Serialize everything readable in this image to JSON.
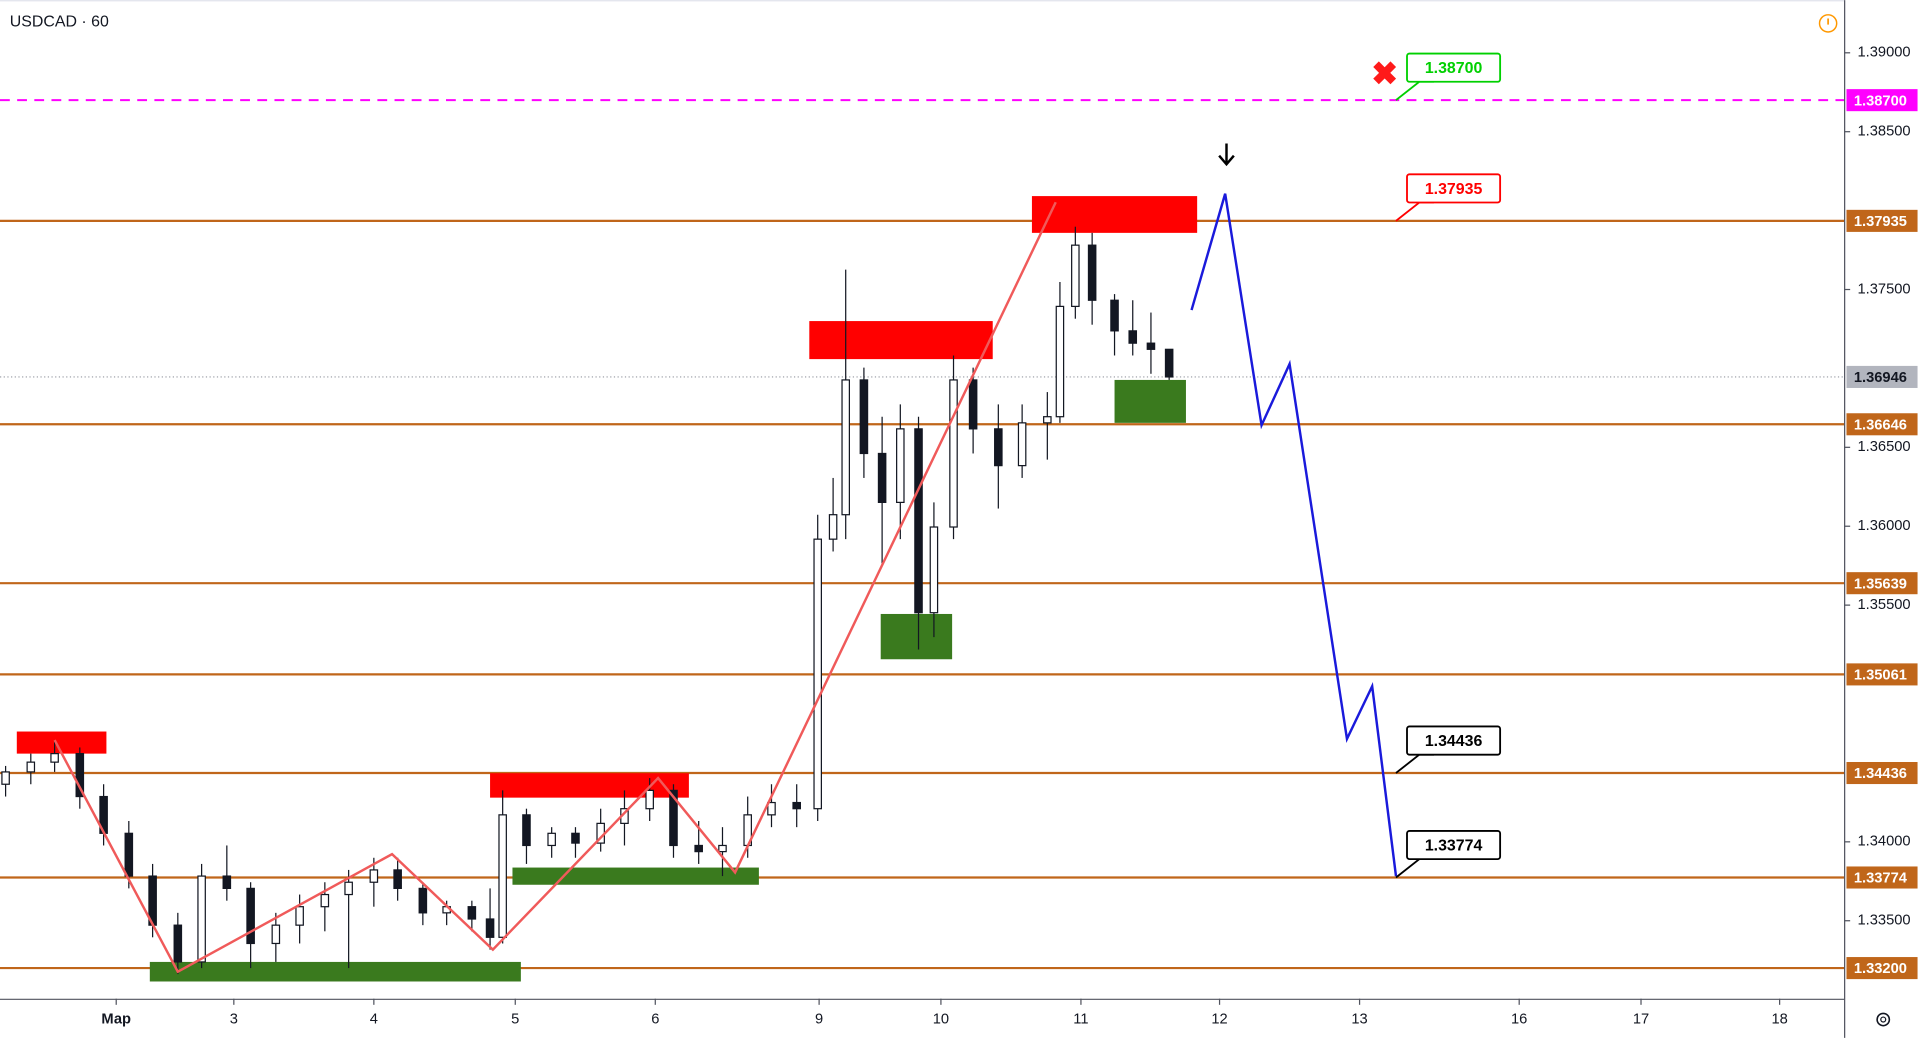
{
  "chart_data": {
    "type": "candlestick",
    "title": "USDCAD · 60",
    "xlim": [
      -0.83,
      12.34
    ],
    "ylim": [
      1.33006,
      1.39334
    ],
    "xticks": [
      {
        "value": 0,
        "label": "Мар"
      },
      {
        "value": 0.84,
        "label": "3"
      },
      {
        "value": 1.84,
        "label": "4"
      },
      {
        "value": 2.85,
        "label": "5"
      },
      {
        "value": 3.85,
        "label": "6"
      },
      {
        "value": 5.02,
        "label": "9"
      },
      {
        "value": 5.89,
        "label": "10"
      },
      {
        "value": 6.89,
        "label": "11"
      },
      {
        "value": 7.88,
        "label": "12"
      },
      {
        "value": 8.88,
        "label": "13"
      },
      {
        "value": 10.02,
        "label": "16"
      },
      {
        "value": 10.89,
        "label": "17"
      },
      {
        "value": 11.88,
        "label": "18"
      }
    ],
    "yticks": [
      {
        "value": 1.39,
        "label": "1.39000"
      },
      {
        "value": 1.385,
        "label": "1.38500"
      },
      {
        "value": 1.375,
        "label": "1.37500"
      },
      {
        "value": 1.365,
        "label": "1.36500"
      },
      {
        "value": 1.36,
        "label": "1.36000"
      },
      {
        "value": 1.355,
        "label": "1.35500"
      },
      {
        "value": 1.34,
        "label": "1.34000"
      },
      {
        "value": 1.335,
        "label": "1.33500"
      }
    ],
    "x": [
      -0.79,
      -0.61,
      -0.44,
      -0.26,
      -0.09,
      0.09,
      0.26,
      0.44,
      0.61,
      0.79,
      0.96,
      1.14,
      1.31,
      1.49,
      1.66,
      1.84,
      2.01,
      2.19,
      2.36,
      2.54,
      2.67,
      2.76,
      2.93,
      3.11,
      3.28,
      3.46,
      3.63,
      3.81,
      3.98,
      4.16,
      4.33,
      4.51,
      4.68,
      4.86,
      5.01,
      5.12,
      5.21,
      5.34,
      5.47,
      5.6,
      5.73,
      5.84,
      5.98,
      6.12,
      6.3,
      6.47,
      6.65,
      6.74,
      6.85,
      6.97,
      7.13,
      7.26,
      7.39,
      7.52
    ],
    "open": [
      1.34365,
      1.34443,
      1.34505,
      1.34559,
      1.34287,
      1.34054,
      1.33783,
      1.33472,
      1.33239,
      1.33783,
      1.33705,
      1.33356,
      1.33472,
      1.33589,
      1.33666,
      1.33744,
      1.33822,
      1.33705,
      1.3355,
      1.33589,
      1.33511,
      1.33395,
      1.34171,
      1.33977,
      1.34054,
      1.33992,
      1.34117,
      1.3421,
      1.34326,
      1.33977,
      1.33938,
      1.33977,
      1.34171,
      1.34249,
      1.3421,
      1.35918,
      1.36073,
      1.36927,
      1.36461,
      1.36151,
      1.36617,
      1.35452,
      1.35995,
      1.36927,
      1.36617,
      1.36384,
      1.36655,
      1.36694,
      1.37393,
      1.37781,
      1.37432,
      1.37238,
      1.3716,
      1.37121
    ],
    "high": [
      1.34481,
      1.34559,
      1.34637,
      1.34598,
      1.34365,
      1.34132,
      1.3386,
      1.3355,
      1.3386,
      1.33977,
      1.33744,
      1.3355,
      1.33666,
      1.33744,
      1.33822,
      1.33899,
      1.33899,
      1.33744,
      1.33627,
      1.33627,
      1.33705,
      1.34326,
      1.3421,
      1.34093,
      1.34093,
      1.3421,
      1.34326,
      1.34404,
      1.34365,
      1.34132,
      1.34093,
      1.34287,
      1.34365,
      1.34365,
      1.36073,
      1.36306,
      1.37626,
      1.37005,
      1.36694,
      1.36772,
      1.36694,
      1.36151,
      1.37082,
      1.37005,
      1.36772,
      1.36772,
      1.3685,
      1.37548,
      1.37898,
      1.37859,
      1.37471,
      1.37432,
      1.37354,
      1.37121
    ],
    "low": [
      1.34287,
      1.34365,
      1.34443,
      1.3421,
      1.33977,
      1.33705,
      1.33395,
      1.33162,
      1.332,
      1.33627,
      1.332,
      1.33239,
      1.33356,
      1.33433,
      1.332,
      1.33589,
      1.33627,
      1.33472,
      1.33472,
      1.33433,
      1.33317,
      1.33356,
      1.3386,
      1.33899,
      1.33899,
      1.33938,
      1.33977,
      1.34132,
      1.33899,
      1.3386,
      1.33783,
      1.33899,
      1.34093,
      1.34093,
      1.34132,
      1.3584,
      1.35918,
      1.36306,
      1.35763,
      1.35918,
      1.35219,
      1.35297,
      1.35918,
      1.36461,
      1.36112,
      1.36306,
      1.36422,
      1.36655,
      1.37315,
      1.37277,
      1.37082,
      1.37082,
      1.36966,
      1.36927
    ],
    "close": [
      1.34443,
      1.34505,
      1.34559,
      1.34287,
      1.34054,
      1.33783,
      1.33472,
      1.33239,
      1.33783,
      1.33705,
      1.33356,
      1.33472,
      1.33589,
      1.33666,
      1.33744,
      1.33822,
      1.33705,
      1.3355,
      1.33589,
      1.33511,
      1.33395,
      1.34171,
      1.33977,
      1.34054,
      1.33992,
      1.34117,
      1.3421,
      1.34326,
      1.33977,
      1.33938,
      1.33977,
      1.34171,
      1.34249,
      1.3421,
      1.35918,
      1.36073,
      1.36927,
      1.36461,
      1.36151,
      1.36617,
      1.35452,
      1.35995,
      1.36927,
      1.36617,
      1.36384,
      1.36655,
      1.36694,
      1.37393,
      1.37781,
      1.37432,
      1.37238,
      1.3716,
      1.37121,
      1.36946
    ],
    "levels": [
      {
        "value": 1.387,
        "label": "1.38700",
        "color": "#ff00ff",
        "dash": true
      },
      {
        "value": 1.37935,
        "label": "1.37935",
        "color": "#c0661a"
      },
      {
        "value": 1.36646,
        "label": "1.36646",
        "color": "#c0661a"
      },
      {
        "value": 1.35639,
        "label": "1.35639",
        "color": "#c0661a"
      },
      {
        "value": 1.35061,
        "label": "1.35061",
        "color": "#c0661a"
      },
      {
        "value": 1.34436,
        "label": "1.34436",
        "color": "#c0661a"
      },
      {
        "value": 1.33774,
        "label": "1.33774",
        "color": "#c0661a"
      },
      {
        "value": 1.332,
        "label": "1.33200",
        "color": "#c0661a"
      }
    ],
    "last_price": {
      "value": 1.36946,
      "label": "1.36946",
      "color": "#b2b5be"
    },
    "zones": [
      {
        "x0": -0.71,
        "x1": -0.07,
        "y0": 1.34699,
        "y1": 1.34559,
        "color": "#ff0000"
      },
      {
        "x0": 2.67,
        "x1": 4.09,
        "y0": 1.34435,
        "y1": 1.3428,
        "color": "#ff0000"
      },
      {
        "x0": 2.83,
        "x1": 4.59,
        "y0": 1.33837,
        "y1": 1.33728,
        "color": "#3a7a1e"
      },
      {
        "x0": 0.24,
        "x1": 2.89,
        "y0": 1.33239,
        "y1": 1.33115,
        "color": "#3a7a1e"
      },
      {
        "x0": 4.95,
        "x1": 6.26,
        "y0": 1.373,
        "y1": 1.37059,
        "color": "#ff0000"
      },
      {
        "x0": 5.46,
        "x1": 5.97,
        "y0": 1.35444,
        "y1": 1.35157,
        "color": "#3a7a1e"
      },
      {
        "x0": 6.54,
        "x1": 7.72,
        "y0": 1.38092,
        "y1": 1.37859,
        "color": "#ff0000"
      },
      {
        "x0": 7.13,
        "x1": 7.64,
        "y0": 1.36927,
        "y1": 1.36655,
        "color": "#3a7a1e"
      }
    ],
    "lines": [
      {
        "color": "#f05a5a",
        "x": [
          -0.44,
          0.44,
          1.97,
          2.69,
          3.87,
          4.42,
          6.71
        ],
        "y": [
          1.34645,
          1.33177,
          1.33922,
          1.33317,
          1.34404,
          1.33806,
          1.38053
        ]
      },
      {
        "color": "#1a1adb",
        "x": [
          7.68,
          7.92,
          8.18,
          8.38,
          8.79,
          8.97,
          9.14
        ],
        "y": [
          1.3737,
          1.38107,
          1.3664,
          1.37028,
          1.34652,
          1.34986,
          1.33783
        ]
      }
    ],
    "annotations": [
      {
        "x": 9.14,
        "value": 1.387,
        "label": "1.38700",
        "color": "#00d000"
      },
      {
        "x": 9.14,
        "value": 1.37935,
        "label": "1.37935",
        "color": "#ff0000"
      },
      {
        "x": 9.14,
        "value": 1.34436,
        "label": "1.34436",
        "color": "#000000"
      },
      {
        "x": 9.14,
        "value": 1.33774,
        "label": "1.33774",
        "color": "#000000"
      }
    ]
  }
}
